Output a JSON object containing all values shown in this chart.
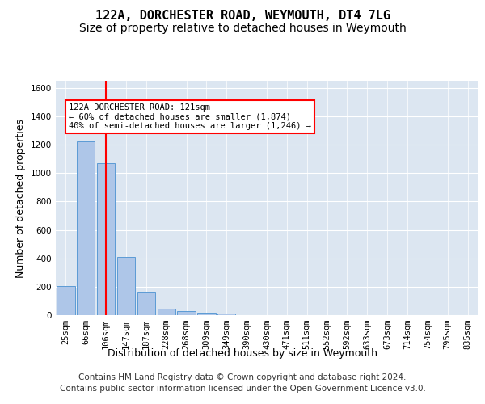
{
  "title": "122A, DORCHESTER ROAD, WEYMOUTH, DT4 7LG",
  "subtitle": "Size of property relative to detached houses in Weymouth",
  "xlabel": "Distribution of detached houses by size in Weymouth",
  "ylabel": "Number of detached properties",
  "footer_line1": "Contains HM Land Registry data © Crown copyright and database right 2024.",
  "footer_line2": "Contains public sector information licensed under the Open Government Licence v3.0.",
  "bar_labels": [
    "25sqm",
    "66sqm",
    "106sqm",
    "147sqm",
    "187sqm",
    "228sqm",
    "268sqm",
    "309sqm",
    "349sqm",
    "390sqm",
    "430sqm",
    "471sqm",
    "511sqm",
    "552sqm",
    "592sqm",
    "633sqm",
    "673sqm",
    "714sqm",
    "754sqm",
    "795sqm",
    "835sqm"
  ],
  "bar_values": [
    205,
    1225,
    1070,
    410,
    162,
    45,
    28,
    18,
    14,
    0,
    0,
    0,
    0,
    0,
    0,
    0,
    0,
    0,
    0,
    0,
    0
  ],
  "bar_color": "#aec6e8",
  "bar_edge_color": "#5b9bd5",
  "annotation_text": "122A DORCHESTER ROAD: 121sqm\n← 60% of detached houses are smaller (1,874)\n40% of semi-detached houses are larger (1,246) →",
  "ylim": [
    0,
    1650
  ],
  "yticks": [
    0,
    200,
    400,
    600,
    800,
    1000,
    1200,
    1400,
    1600
  ],
  "plot_background": "#dce6f1",
  "grid_color": "#ffffff",
  "title_fontsize": 11,
  "subtitle_fontsize": 10,
  "ylabel_fontsize": 9,
  "xlabel_fontsize": 9,
  "tick_fontsize": 7.5,
  "footer_fontsize": 7.5,
  "annot_fontsize": 7.5
}
